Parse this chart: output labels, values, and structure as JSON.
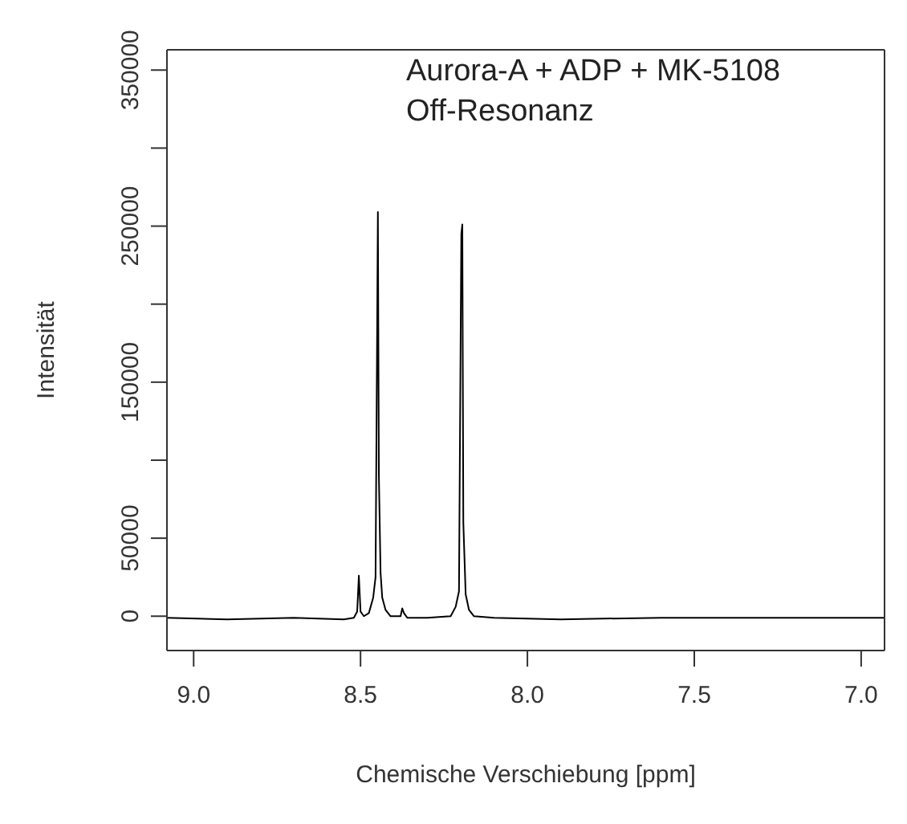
{
  "chart_data": {
    "type": "line",
    "xlabel": "Chemische Verschiebung [ppm]",
    "ylabel": "Intensität",
    "annotations": [
      "Aurora-A + ADP + MK-5108",
      "Off-Resonanz"
    ],
    "xlim": [
      9.08,
      6.93
    ],
    "ylim": [
      -22000,
      363000
    ],
    "xticks": [
      {
        "value": 9,
        "label": "9.0"
      },
      {
        "value": 8.5,
        "label": "8.5"
      },
      {
        "value": 8,
        "label": "8.0"
      },
      {
        "value": 7.5,
        "label": "7.5"
      },
      {
        "value": 7,
        "label": "7.0"
      }
    ],
    "yticks": [
      0,
      50000,
      {
        "value": 100000,
        "label": null
      },
      150000,
      {
        "value": 200000,
        "label": null
      },
      250000,
      {
        "value": 300000,
        "label": null
      },
      350000
    ],
    "marker": "none",
    "line_style": "solid",
    "series": [
      {
        "color": "#000000",
        "x": [
          9.08,
          8.9,
          8.7,
          8.55,
          8.52,
          8.51,
          8.505,
          8.5,
          8.49,
          8.475,
          8.462,
          8.455,
          8.45,
          8.448,
          8.445,
          8.44,
          8.435,
          8.425,
          8.41,
          8.38,
          8.375,
          8.37,
          8.36,
          8.3,
          8.23,
          8.215,
          8.205,
          8.198,
          8.195,
          8.192,
          8.185,
          8.175,
          8.16,
          8.1,
          7.9,
          7.6,
          7.3,
          7.0,
          6.93
        ],
        "values": [
          -1000,
          -2000,
          -1000,
          -2000,
          -1000,
          3000,
          26000,
          3000,
          0,
          2000,
          12000,
          25000,
          190000,
          259000,
          90000,
          28000,
          12000,
          4000,
          0,
          0,
          5000,
          2000,
          -1000,
          -1000,
          0,
          6000,
          16000,
          245000,
          251000,
          60000,
          14000,
          4000,
          0,
          -1000,
          -2000,
          -1000,
          -1000,
          -1000,
          -1000
        ]
      }
    ]
  }
}
